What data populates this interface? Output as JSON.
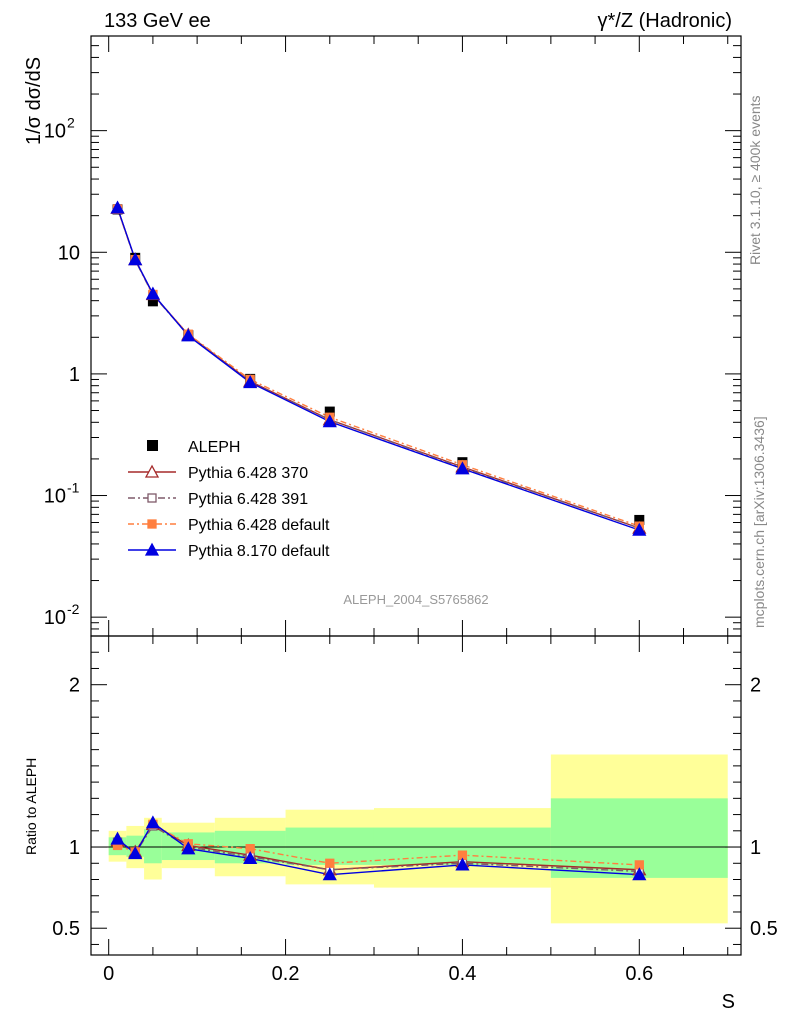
{
  "header": {
    "left": "133 GeV ee",
    "right": "γ*/Z (Hadronic)"
  },
  "side_texts": {
    "rivet": "Rivet 3.1.10, ≥ 400k events",
    "mcplots": "mcplots.cern.ch [arXiv:1306.3436]"
  },
  "watermark": "ALEPH_2004_S5765862",
  "chart_data": [
    {
      "type": "line",
      "title": "",
      "ylabel": "1/σ  dσ/dS",
      "yscale": "log",
      "ylim": [
        0.007,
        600
      ],
      "xlim": [
        -0.02,
        0.715
      ],
      "yticks": [
        {
          "v": 0.01,
          "label": "10",
          "exp": "-2"
        },
        {
          "v": 0.1,
          "label": "10",
          "exp": "-1"
        },
        {
          "v": 1,
          "label": "1",
          "exp": ""
        },
        {
          "v": 10,
          "label": "10",
          "exp": ""
        },
        {
          "v": 100,
          "label": "10",
          "exp": "2"
        }
      ],
      "legend_position": "lower-left",
      "x": [
        0.01,
        0.03,
        0.05,
        0.09,
        0.16,
        0.25,
        0.4,
        0.6
      ],
      "data": {
        "name": "ALEPH",
        "color": "#000000",
        "values": [
          22.5,
          9.0,
          3.95,
          2.08,
          0.91,
          0.49,
          0.188,
          0.063
        ]
      },
      "series": [
        {
          "name": "Pythia 6.428 370",
          "color": "#a52a2a",
          "marker": "open-triangle",
          "dash": "",
          "values": [
            23.0,
            8.7,
            4.5,
            2.1,
            0.87,
            0.42,
            0.172,
            0.054
          ]
        },
        {
          "name": "Pythia 6.428 391",
          "color": "#7f5a6a",
          "marker": "open-square",
          "dash": "7,3,2,3",
          "values": [
            22.8,
            8.6,
            4.45,
            2.09,
            0.86,
            0.42,
            0.17,
            0.054
          ]
        },
        {
          "name": "Pythia 6.428 default",
          "color": "#ff7f3f",
          "marker": "filled-square",
          "dash": "6,3,2,3",
          "values": [
            22.6,
            8.7,
            4.5,
            2.12,
            0.9,
            0.44,
            0.179,
            0.056
          ]
        },
        {
          "name": "Pythia 8.170 default",
          "color": "#0000e0",
          "marker": "filled-triangle",
          "dash": "",
          "values": [
            23.2,
            8.7,
            4.55,
            2.06,
            0.85,
            0.405,
            0.166,
            0.052
          ]
        }
      ]
    },
    {
      "type": "line",
      "title": "",
      "ylabel": "Ratio to ALEPH",
      "xlabel": "S",
      "ylim": [
        0.335,
        2.3
      ],
      "xlim": [
        -0.02,
        0.715
      ],
      "yticks": [
        0.5,
        1,
        2
      ],
      "xticks": [
        {
          "v": 0,
          "label": "0"
        },
        {
          "v": 0.2,
          "label": "0.2"
        },
        {
          "v": 0.4,
          "label": "0.4"
        },
        {
          "v": 0.6,
          "label": "0.6"
        }
      ],
      "uncertainty_bands": [
        {
          "xlo": 0.0,
          "xhi": 0.02,
          "stat_lo": 0.95,
          "stat_hi": 1.06,
          "tot_lo": 0.91,
          "tot_hi": 1.1
        },
        {
          "xlo": 0.02,
          "xhi": 0.04,
          "stat_lo": 0.94,
          "stat_hi": 1.07,
          "tot_lo": 0.87,
          "tot_hi": 1.13
        },
        {
          "xlo": 0.04,
          "xhi": 0.06,
          "stat_lo": 0.9,
          "stat_hi": 1.11,
          "tot_lo": 0.8,
          "tot_hi": 1.18
        },
        {
          "xlo": 0.06,
          "xhi": 0.12,
          "stat_lo": 0.92,
          "stat_hi": 1.09,
          "tot_lo": 0.87,
          "tot_hi": 1.15
        },
        {
          "xlo": 0.12,
          "xhi": 0.2,
          "stat_lo": 0.9,
          "stat_hi": 1.1,
          "tot_lo": 0.82,
          "tot_hi": 1.18
        },
        {
          "xlo": 0.2,
          "xhi": 0.3,
          "stat_lo": 0.89,
          "stat_hi": 1.12,
          "tot_lo": 0.77,
          "tot_hi": 1.23
        },
        {
          "xlo": 0.3,
          "xhi": 0.5,
          "stat_lo": 0.89,
          "stat_hi": 1.12,
          "tot_lo": 0.75,
          "tot_hi": 1.24
        },
        {
          "xlo": 0.5,
          "xhi": 0.7,
          "stat_lo": 0.81,
          "stat_hi": 1.3,
          "tot_lo": 0.53,
          "tot_hi": 1.57
        }
      ],
      "series": [
        {
          "name": "Pythia 6.428 370",
          "values": [
            1.04,
            0.97,
            1.14,
            1.01,
            0.95,
            0.86,
            0.91,
            0.86
          ]
        },
        {
          "name": "Pythia 6.428 391",
          "values": [
            1.03,
            0.96,
            1.13,
            1.0,
            0.94,
            0.86,
            0.9,
            0.85
          ]
        },
        {
          "name": "Pythia 6.428 default",
          "values": [
            1.01,
            0.97,
            1.14,
            1.02,
            0.99,
            0.9,
            0.95,
            0.89
          ]
        },
        {
          "name": "Pythia 8.170 default",
          "values": [
            1.05,
            0.96,
            1.15,
            0.99,
            0.93,
            0.83,
            0.89,
            0.83
          ]
        }
      ]
    }
  ]
}
